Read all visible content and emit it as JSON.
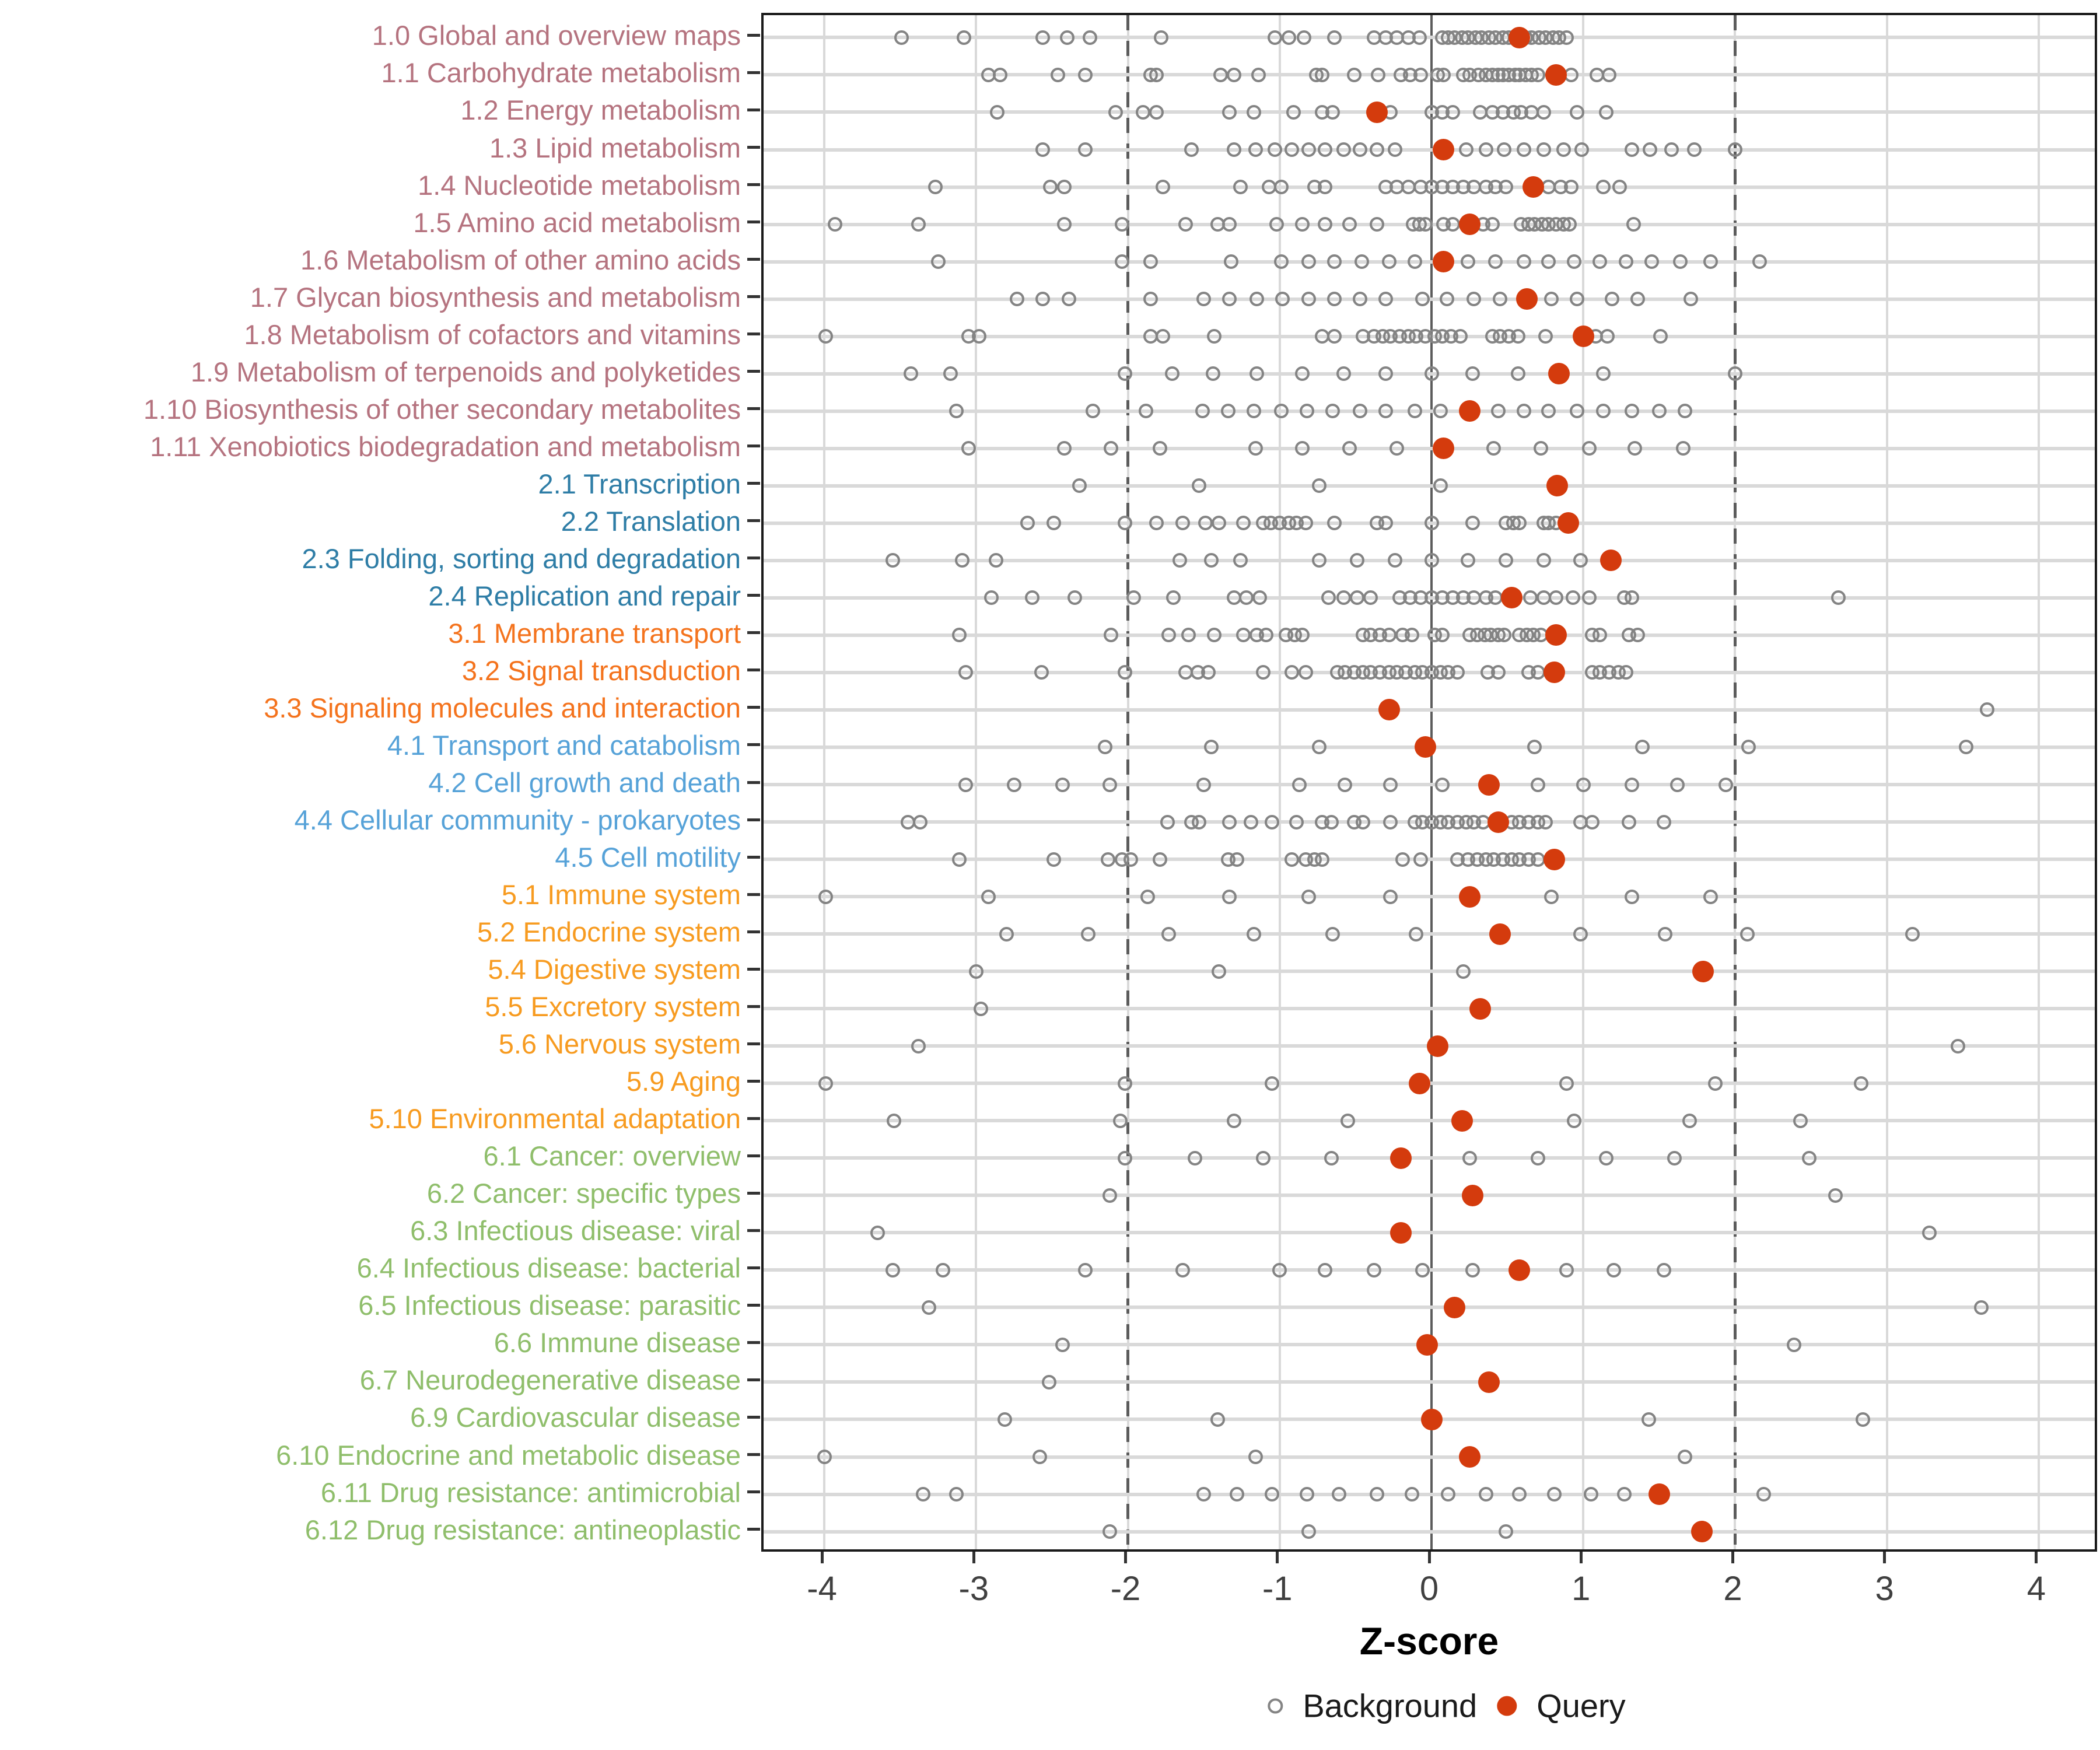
{
  "chart_data": {
    "type": "scatter",
    "title": "",
    "xlabel": "Z-score",
    "ylabel": "",
    "xlim": [
      -4.4,
      4.4
    ],
    "x_ticks": [
      -4,
      -3,
      -2,
      -1,
      0,
      1,
      2,
      3,
      4
    ],
    "zero_line": 0,
    "dashed_reference_lines": [
      -2,
      2
    ],
    "grid": "on",
    "legend_position": "bottom",
    "legend": [
      {
        "label": "Background",
        "marker": "open-circle",
        "color": "#848484"
      },
      {
        "label": "Query",
        "marker": "filled-circle",
        "color": "#D43B0D"
      }
    ],
    "colors": {
      "query_red": "#D43B0D",
      "background_stroke": "#848484",
      "grid": "#D9D9D9",
      "axis_line": "#1A1A1A",
      "reference_line": "#5C5C5C",
      "tick_label": "#404040",
      "groups": {
        "metabolism": "#B5737F",
        "genetic_information_processing": "#2E7DA6",
        "environmental_information_processing": "#F4731D",
        "cellular_processes": "#56A2D8",
        "organismal_systems": "#F79B20",
        "human_diseases": "#8FBE6B"
      }
    },
    "rows": [
      {
        "label": "1.0 Global and overview maps",
        "group": "metabolism",
        "query": 0.58,
        "background": [
          -3.49,
          -3.08,
          -2.56,
          -2.4,
          -2.25,
          -1.78,
          -1.03,
          -0.94,
          -0.84,
          -0.64,
          -0.38,
          -0.3,
          -0.23,
          -0.15,
          -0.08,
          0.07,
          0.11,
          0.15,
          0.2,
          0.24,
          0.29,
          0.33,
          0.38,
          0.42,
          0.47,
          0.51,
          0.56,
          0.62,
          0.66,
          0.71,
          0.75,
          0.8,
          0.84,
          0.89
        ]
      },
      {
        "label": "1.1 Carbohydrate metabolism",
        "group": "metabolism",
        "query": 0.82,
        "background": [
          -2.92,
          -2.84,
          -2.46,
          -2.28,
          -1.85,
          -1.81,
          -1.39,
          -1.3,
          -1.14,
          -0.76,
          -0.72,
          -0.51,
          -0.35,
          -0.2,
          -0.14,
          -0.07,
          0.04,
          0.08,
          0.21,
          0.25,
          0.31,
          0.36,
          0.4,
          0.44,
          0.47,
          0.51,
          0.55,
          0.58,
          0.62,
          0.66,
          0.7,
          0.92,
          1.09,
          1.17
        ]
      },
      {
        "label": "1.2 Energy metabolism",
        "group": "metabolism",
        "query": -0.36,
        "background": [
          -2.86,
          -2.08,
          -1.9,
          -1.81,
          -1.33,
          -1.17,
          -0.91,
          -0.72,
          -0.65,
          -0.27,
          0.0,
          0.07,
          0.14,
          0.32,
          0.4,
          0.47,
          0.54,
          0.59,
          0.66,
          0.74,
          0.96,
          1.15
        ]
      },
      {
        "label": "1.3 Lipid metabolism",
        "group": "metabolism",
        "query": 0.08,
        "background": [
          -2.56,
          -2.28,
          -1.58,
          -1.3,
          -1.16,
          -1.03,
          -0.92,
          -0.81,
          -0.7,
          -0.58,
          -0.47,
          -0.36,
          -0.24,
          0.23,
          0.36,
          0.48,
          0.61,
          0.74,
          0.87,
          0.99,
          1.32,
          1.44,
          1.58,
          1.73,
          2.0
        ]
      },
      {
        "label": "1.4 Nucleotide metabolism",
        "group": "metabolism",
        "query": 0.67,
        "background": [
          -3.27,
          -2.51,
          -2.42,
          -1.77,
          -1.26,
          -1.07,
          -0.99,
          -0.77,
          -0.7,
          -0.3,
          -0.23,
          -0.15,
          -0.07,
          0.0,
          0.07,
          0.14,
          0.21,
          0.28,
          0.36,
          0.42,
          0.49,
          0.77,
          0.85,
          0.92,
          1.13,
          1.24
        ]
      },
      {
        "label": "1.5 Amino acid metabolism",
        "group": "metabolism",
        "query": 0.25,
        "background": [
          -3.93,
          -3.38,
          -2.42,
          -2.04,
          -1.62,
          -1.41,
          -1.33,
          -1.02,
          -0.85,
          -0.7,
          -0.54,
          -0.36,
          -0.12,
          -0.08,
          -0.04,
          0.08,
          0.14,
          0.34,
          0.4,
          0.59,
          0.64,
          0.68,
          0.73,
          0.77,
          0.82,
          0.87,
          0.91,
          1.33
        ]
      },
      {
        "label": "1.6 Metabolism of other amino acids",
        "group": "metabolism",
        "query": 0.08,
        "background": [
          -3.25,
          -2.04,
          -1.85,
          -1.32,
          -0.99,
          -0.81,
          -0.64,
          -0.46,
          -0.28,
          -0.11,
          0.24,
          0.42,
          0.61,
          0.77,
          0.94,
          1.11,
          1.28,
          1.45,
          1.64,
          1.84,
          2.16
        ]
      },
      {
        "label": "1.7 Glycan biosynthesis and metabolism",
        "group": "metabolism",
        "query": 0.63,
        "background": [
          -2.73,
          -2.56,
          -2.39,
          -1.85,
          -1.5,
          -1.33,
          -1.15,
          -0.98,
          -0.81,
          -0.64,
          -0.47,
          -0.3,
          -0.06,
          0.1,
          0.28,
          0.45,
          0.79,
          0.96,
          1.19,
          1.36,
          1.71
        ]
      },
      {
        "label": "1.8 Metabolism of cofactors and vitamins",
        "group": "metabolism",
        "query": 1.0,
        "background": [
          -3.99,
          -3.05,
          -2.98,
          -1.85,
          -1.77,
          -1.43,
          -0.72,
          -0.64,
          -0.45,
          -0.38,
          -0.32,
          -0.27,
          -0.21,
          -0.15,
          -0.1,
          -0.04,
          0.02,
          0.07,
          0.13,
          0.19,
          0.4,
          0.45,
          0.51,
          0.57,
          0.75,
          1.08,
          1.16,
          1.51
        ]
      },
      {
        "label": "1.9 Metabolism of terpenoids and polyketides",
        "group": "metabolism",
        "query": 0.84,
        "background": [
          -3.43,
          -3.17,
          -2.02,
          -1.71,
          -1.44,
          -1.15,
          -0.85,
          -0.58,
          -0.3,
          0.0,
          0.27,
          0.57,
          1.13,
          2.0
        ]
      },
      {
        "label": "1.10 Biosynthesis of other secondary metabolites",
        "group": "metabolism",
        "query": 0.25,
        "background": [
          -3.13,
          -2.23,
          -1.88,
          -1.51,
          -1.34,
          -1.17,
          -0.99,
          -0.82,
          -0.65,
          -0.47,
          -0.3,
          -0.11,
          0.06,
          0.44,
          0.61,
          0.77,
          0.96,
          1.13,
          1.32,
          1.5,
          1.67
        ]
      },
      {
        "label": "1.11 Xenobiotics biodegradation and metabolism",
        "group": "metabolism",
        "query": 0.08,
        "background": [
          -3.05,
          -2.42,
          -2.11,
          -1.79,
          -1.16,
          -0.85,
          -0.54,
          -0.23,
          0.41,
          0.72,
          1.04,
          1.34,
          1.66
        ]
      },
      {
        "label": "2.1 Transcription",
        "group": "genetic_information_processing",
        "query": 0.83,
        "background": [
          -2.32,
          -1.53,
          -0.74,
          0.06
        ]
      },
      {
        "label": "2.2 Translation",
        "group": "genetic_information_processing",
        "query": 0.9,
        "background": [
          -2.66,
          -2.49,
          -2.02,
          -1.81,
          -1.64,
          -1.49,
          -1.4,
          -1.24,
          -1.11,
          -1.06,
          -1.0,
          -0.94,
          -0.89,
          -0.83,
          -0.64,
          -0.36,
          -0.3,
          0.0,
          0.27,
          0.49,
          0.54,
          0.58,
          0.74,
          0.77,
          0.82
        ]
      },
      {
        "label": "2.3 Folding, sorting and degradation",
        "group": "genetic_information_processing",
        "query": 1.18,
        "background": [
          -3.55,
          -3.09,
          -2.87,
          -1.66,
          -1.45,
          -1.26,
          -0.74,
          -0.49,
          -0.24,
          0.0,
          0.24,
          0.49,
          0.74,
          0.98
        ]
      },
      {
        "label": "2.4 Replication and repair",
        "group": "genetic_information_processing",
        "query": 0.53,
        "background": [
          -2.9,
          -2.63,
          -2.35,
          -1.96,
          -1.7,
          -1.3,
          -1.22,
          -1.13,
          -0.68,
          -0.58,
          -0.49,
          -0.4,
          -0.21,
          -0.14,
          -0.07,
          0.0,
          0.07,
          0.14,
          0.21,
          0.28,
          0.36,
          0.42,
          0.65,
          0.74,
          0.82,
          0.93,
          1.04,
          1.27,
          1.32,
          2.68
        ]
      },
      {
        "label": "3.1 Membrane transport",
        "group": "environmental_information_processing",
        "query": 0.82,
        "background": [
          -3.11,
          -2.11,
          -1.73,
          -1.6,
          -1.43,
          -1.24,
          -1.15,
          -1.09,
          -0.96,
          -0.9,
          -0.85,
          -0.45,
          -0.4,
          -0.34,
          -0.28,
          -0.19,
          -0.13,
          0.02,
          0.07,
          0.25,
          0.3,
          0.35,
          0.39,
          0.44,
          0.48,
          0.58,
          0.63,
          0.67,
          0.72,
          1.06,
          1.11,
          1.3,
          1.36
        ]
      },
      {
        "label": "3.2 Signal transduction",
        "group": "environmental_information_processing",
        "query": 0.81,
        "background": [
          -3.07,
          -2.57,
          -2.02,
          -1.62,
          -1.54,
          -1.47,
          -1.11,
          -0.92,
          -0.83,
          -0.62,
          -0.57,
          -0.51,
          -0.45,
          -0.4,
          -0.34,
          -0.28,
          -0.23,
          -0.17,
          -0.11,
          -0.06,
          0.0,
          0.06,
          0.11,
          0.17,
          0.37,
          0.44,
          0.64,
          0.7,
          1.06,
          1.11,
          1.17,
          1.23,
          1.28
        ]
      },
      {
        "label": "3.3 Signaling molecules and interaction",
        "group": "environmental_information_processing",
        "query": -0.28,
        "background": [
          3.66
        ]
      },
      {
        "label": "4.1 Transport and catabolism",
        "group": "cellular_processes",
        "query": -0.04,
        "background": [
          -2.15,
          -1.45,
          -0.74,
          0.68,
          1.39,
          2.09,
          3.52
        ]
      },
      {
        "label": "4.2 Cell growth and death",
        "group": "cellular_processes",
        "query": 0.38,
        "background": [
          -3.07,
          -2.75,
          -2.43,
          -2.12,
          -1.5,
          -0.87,
          -0.57,
          -0.27,
          0.07,
          0.7,
          1.0,
          1.32,
          1.62,
          1.94
        ]
      },
      {
        "label": "4.4 Cellular community - prokaryotes",
        "group": "cellular_processes",
        "query": 0.44,
        "background": [
          -3.45,
          -3.37,
          -1.74,
          -1.58,
          -1.53,
          -1.33,
          -1.19,
          -1.05,
          -0.89,
          -0.72,
          -0.66,
          -0.51,
          -0.45,
          -0.27,
          -0.11,
          -0.06,
          0.0,
          0.06,
          0.11,
          0.17,
          0.23,
          0.28,
          0.34,
          0.53,
          0.58,
          0.64,
          0.7,
          0.75,
          0.98,
          1.06,
          1.3,
          1.53
        ]
      },
      {
        "label": "4.5 Cell motility",
        "group": "cellular_processes",
        "query": 0.81,
        "background": [
          -3.11,
          -2.49,
          -2.13,
          -2.04,
          -1.98,
          -1.79,
          -1.34,
          -1.28,
          -0.92,
          -0.83,
          -0.77,
          -0.72,
          -0.19,
          -0.07,
          0.17,
          0.24,
          0.3,
          0.36,
          0.41,
          0.47,
          0.53,
          0.58,
          0.64,
          0.7
        ]
      },
      {
        "label": "5.1 Immune system",
        "group": "organismal_systems",
        "query": 0.25,
        "background": [
          -3.99,
          -2.92,
          -1.87,
          -1.33,
          -0.81,
          -0.27,
          0.79,
          1.32,
          1.84
        ]
      },
      {
        "label": "5.2 Endocrine system",
        "group": "organismal_systems",
        "query": 0.45,
        "background": [
          -2.8,
          -2.26,
          -1.73,
          -1.17,
          -0.65,
          -0.1,
          0.98,
          1.54,
          2.08,
          3.17
        ]
      },
      {
        "label": "5.4 Digestive system",
        "group": "organismal_systems",
        "query": 1.79,
        "background": [
          -3.0,
          -1.4,
          0.21
        ]
      },
      {
        "label": "5.5 Excretory system",
        "group": "organismal_systems",
        "query": 0.32,
        "background": [
          -2.97
        ]
      },
      {
        "label": "5.6 Nervous system",
        "group": "organismal_systems",
        "query": 0.04,
        "background": [
          -3.38,
          3.47
        ]
      },
      {
        "label": "5.9 Aging",
        "group": "organismal_systems",
        "query": -0.08,
        "background": [
          -3.99,
          -2.02,
          -1.05,
          0.89,
          1.87,
          2.83
        ]
      },
      {
        "label": "5.10 Environmental adaptation",
        "group": "organismal_systems",
        "query": 0.2,
        "background": [
          -3.54,
          -2.05,
          -1.3,
          -0.55,
          0.94,
          1.7,
          2.43
        ]
      },
      {
        "label": "6.1 Cancer: overview",
        "group": "human_diseases",
        "query": -0.2,
        "background": [
          -2.02,
          -1.56,
          -1.11,
          -0.66,
          0.25,
          0.7,
          1.15,
          1.6,
          2.49
        ]
      },
      {
        "label": "6.2 Cancer: specific types",
        "group": "human_diseases",
        "query": 0.27,
        "background": [
          -2.12,
          2.66
        ]
      },
      {
        "label": "6.3 Infectious disease: viral",
        "group": "human_diseases",
        "query": -0.2,
        "background": [
          -3.65,
          3.28
        ]
      },
      {
        "label": "6.4 Infectious disease: bacterial",
        "group": "human_diseases",
        "query": 0.58,
        "background": [
          -3.55,
          -3.22,
          -2.28,
          -1.64,
          -1.0,
          -0.7,
          -0.38,
          -0.06,
          0.27,
          0.89,
          1.2,
          1.53
        ]
      },
      {
        "label": "6.5 Infectious disease: parasitic",
        "group": "human_diseases",
        "query": 0.15,
        "background": [
          -3.31,
          3.62
        ]
      },
      {
        "label": "6.6 Immune disease",
        "group": "human_diseases",
        "query": -0.03,
        "background": [
          -2.43,
          2.39
        ]
      },
      {
        "label": "6.7 Neurodegenerative disease",
        "group": "human_diseases",
        "query": 0.38,
        "background": [
          -2.52
        ]
      },
      {
        "label": "6.9 Cardiovascular disease",
        "group": "human_diseases",
        "query": 0.0,
        "background": [
          -2.81,
          -1.41,
          1.43,
          2.84
        ]
      },
      {
        "label": "6.10 Endocrine and metabolic disease",
        "group": "human_diseases",
        "query": 0.25,
        "background": [
          -4.0,
          -2.58,
          -1.16,
          1.67
        ]
      },
      {
        "label": "6.11 Drug resistance: antimicrobial",
        "group": "human_diseases",
        "query": 1.5,
        "background": [
          -3.35,
          -3.13,
          -1.5,
          -1.28,
          -1.05,
          -0.82,
          -0.61,
          -0.36,
          -0.13,
          0.11,
          0.36,
          0.58,
          0.81,
          1.05,
          1.27,
          2.19
        ]
      },
      {
        "label": "6.12 Drug resistance: antineoplastic",
        "group": "human_diseases",
        "query": 1.78,
        "background": [
          -2.12,
          -0.81,
          0.49
        ]
      }
    ]
  }
}
